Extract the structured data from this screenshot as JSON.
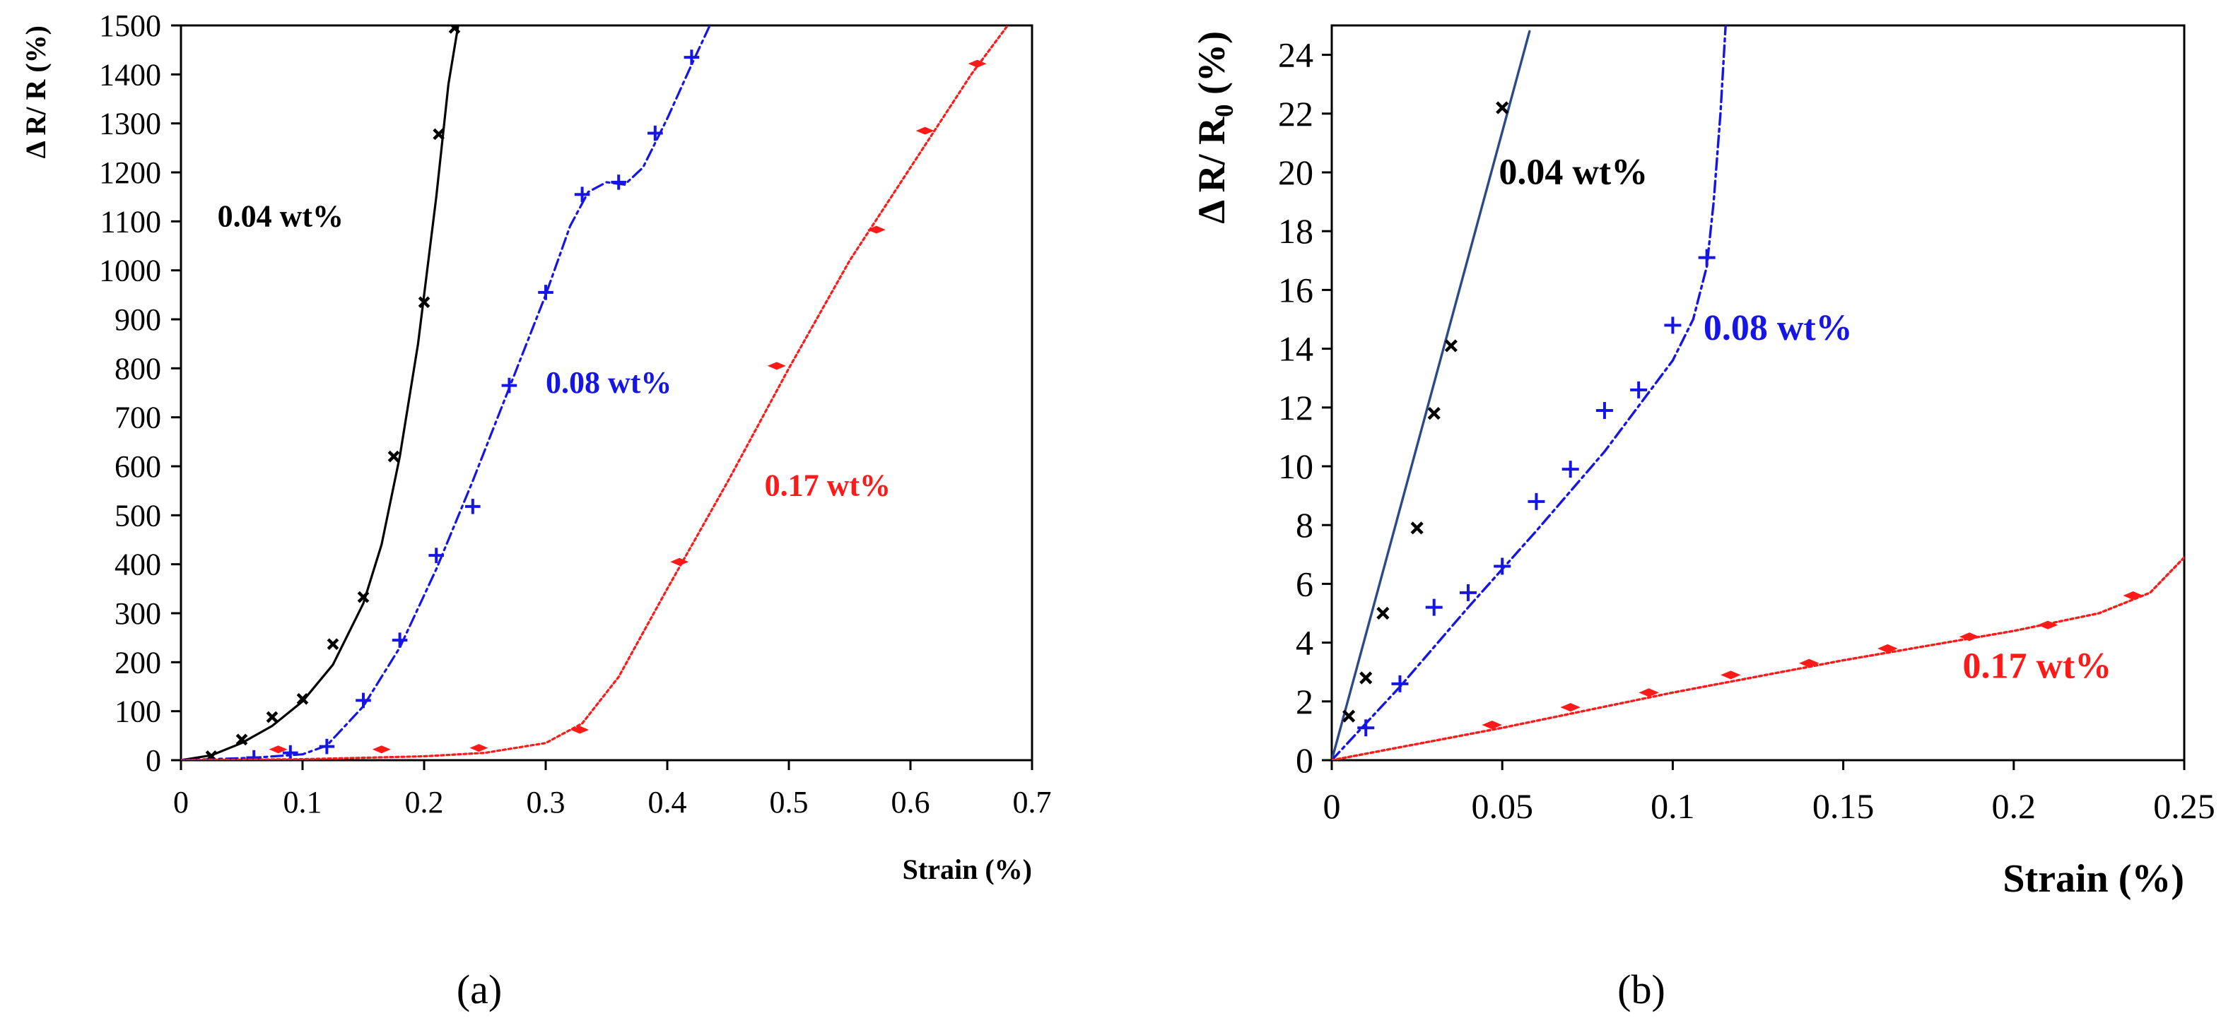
{
  "chart_data": [
    {
      "id": "a",
      "type": "scatter",
      "caption": "(a)",
      "xlabel": "Strain (%)",
      "ylabel": "Δ R/ R (%)",
      "xlim": [
        0,
        0.7
      ],
      "ylim": [
        0,
        1500
      ],
      "xticks": [
        "0",
        "0.1",
        "0.2",
        "0.3",
        "0.4",
        "0.5",
        "0.6",
        "0.7"
      ],
      "yticks": [
        "0",
        "100",
        "200",
        "300",
        "400",
        "500",
        "600",
        "700",
        "800",
        "900",
        "1000",
        "1100",
        "1200",
        "1300",
        "1400",
        "1500"
      ],
      "grid": false,
      "series": [
        {
          "name": "0.04 wt%",
          "color": "#000000",
          "marker": "x",
          "line_style": "solid",
          "label_pos": [
            0.03,
            1090
          ],
          "points": [
            [
              0.025,
              8
            ],
            [
              0.05,
              42
            ],
            [
              0.075,
              88
            ],
            [
              0.1,
              125
            ],
            [
              0.125,
              237
            ],
            [
              0.15,
              333
            ],
            [
              0.175,
              620
            ],
            [
              0.2,
              935
            ],
            [
              0.212,
              1278
            ],
            [
              0.225,
              1495
            ]
          ],
          "fit": [
            [
              0.0,
              0
            ],
            [
              0.025,
              10
            ],
            [
              0.05,
              35
            ],
            [
              0.075,
              70
            ],
            [
              0.1,
              120
            ],
            [
              0.125,
              195
            ],
            [
              0.15,
              320
            ],
            [
              0.165,
              440
            ],
            [
              0.18,
              620
            ],
            [
              0.195,
              850
            ],
            [
              0.21,
              1150
            ],
            [
              0.22,
              1380
            ],
            [
              0.228,
              1500
            ]
          ]
        },
        {
          "name": "0.08 wt%",
          "color": "#1515e6",
          "marker": "+",
          "line_style": "dashed",
          "label_pos": [
            0.3,
            750
          ],
          "points": [
            [
              0.06,
              5
            ],
            [
              0.09,
              15
            ],
            [
              0.12,
              28
            ],
            [
              0.15,
              122
            ],
            [
              0.18,
              245
            ],
            [
              0.21,
              418
            ],
            [
              0.24,
              518
            ],
            [
              0.27,
              765
            ],
            [
              0.3,
              955
            ],
            [
              0.33,
              1155
            ],
            [
              0.36,
              1180
            ],
            [
              0.39,
              1280
            ],
            [
              0.42,
              1435
            ]
          ],
          "fit": [
            [
              0.0,
              0
            ],
            [
              0.06,
              5
            ],
            [
              0.1,
              12
            ],
            [
              0.12,
              30
            ],
            [
              0.15,
              110
            ],
            [
              0.18,
              230
            ],
            [
              0.21,
              390
            ],
            [
              0.24,
              570
            ],
            [
              0.27,
              760
            ],
            [
              0.3,
              950
            ],
            [
              0.32,
              1090
            ],
            [
              0.335,
              1160
            ],
            [
              0.35,
              1180
            ],
            [
              0.365,
              1175
            ],
            [
              0.38,
              1210
            ],
            [
              0.4,
              1310
            ],
            [
              0.42,
              1420
            ],
            [
              0.435,
              1500
            ]
          ]
        },
        {
          "name": "0.17 wt%",
          "color": "#ff1a1a",
          "marker": "diamond",
          "line_style": "dotted",
          "label_pos": [
            0.48,
            540
          ],
          "points": [
            [
              0.08,
              22
            ],
            [
              0.165,
              22
            ],
            [
              0.245,
              25
            ],
            [
              0.328,
              62
            ],
            [
              0.41,
              405
            ],
            [
              0.49,
              805
            ],
            [
              0.572,
              1083
            ],
            [
              0.612,
              1285
            ],
            [
              0.655,
              1422
            ]
          ],
          "fit": [
            [
              0.0,
              0
            ],
            [
              0.1,
              2
            ],
            [
              0.2,
              8
            ],
            [
              0.25,
              15
            ],
            [
              0.3,
              35
            ],
            [
              0.33,
              75
            ],
            [
              0.36,
              170
            ],
            [
              0.4,
              350
            ],
            [
              0.45,
              570
            ],
            [
              0.5,
              800
            ],
            [
              0.55,
              1020
            ],
            [
              0.6,
              1210
            ],
            [
              0.65,
              1400
            ],
            [
              0.68,
              1500
            ]
          ]
        }
      ]
    },
    {
      "id": "b",
      "type": "scatter",
      "caption": "(b)",
      "xlabel": "Strain (%)",
      "ylabel": "Δ R/ R",
      "ylabel_sub": "0",
      "ylabel_tail": " (%)",
      "xlim": [
        0,
        0.25
      ],
      "ylim": [
        0,
        25
      ],
      "xticks": [
        "0",
        "0.05",
        "0.1",
        "0.15",
        "0.2",
        "0.25"
      ],
      "yticks": [
        "0",
        "2",
        "4",
        "6",
        "8",
        "10",
        "12",
        "14",
        "16",
        "18",
        "20",
        "22",
        "24"
      ],
      "grid": false,
      "series": [
        {
          "name": "0.04 wt%",
          "color": "#000000",
          "marker": "x",
          "line_style": "solid",
          "line_color": "#2b4a8a",
          "label_pos": [
            0.049,
            19.6
          ],
          "points": [
            [
              0.005,
              1.5
            ],
            [
              0.01,
              2.8
            ],
            [
              0.015,
              5.0
            ],
            [
              0.025,
              7.9
            ],
            [
              0.03,
              11.8
            ],
            [
              0.035,
              14.1
            ],
            [
              0.05,
              22.2
            ]
          ],
          "fit": [
            [
              0.0,
              0
            ],
            [
              0.058,
              24.8
            ]
          ]
        },
        {
          "name": "0.08 wt%",
          "color": "#1515e6",
          "marker": "+",
          "line_style": "dashed",
          "label_pos": [
            0.109,
            14.3
          ],
          "points": [
            [
              0.01,
              1.1
            ],
            [
              0.02,
              2.6
            ],
            [
              0.03,
              5.2
            ],
            [
              0.04,
              5.7
            ],
            [
              0.05,
              6.6
            ],
            [
              0.06,
              8.8
            ],
            [
              0.07,
              9.9
            ],
            [
              0.08,
              11.9
            ],
            [
              0.09,
              12.6
            ],
            [
              0.1,
              14.8
            ],
            [
              0.11,
              17.1
            ]
          ],
          "fit": [
            [
              0.0,
              0
            ],
            [
              0.02,
              2.5
            ],
            [
              0.04,
              5.2
            ],
            [
              0.06,
              7.8
            ],
            [
              0.08,
              10.5
            ],
            [
              0.1,
              13.6
            ],
            [
              0.106,
              15.0
            ],
            [
              0.11,
              16.8
            ],
            [
              0.112,
              19.0
            ],
            [
              0.114,
              22.0
            ],
            [
              0.1155,
              25.0
            ]
          ]
        },
        {
          "name": "0.17 wt%",
          "color": "#ff1a1a",
          "marker": "diamond",
          "line_style": "dotted",
          "label_pos": [
            0.185,
            2.8
          ],
          "points": [
            [
              0.047,
              1.2
            ],
            [
              0.07,
              1.8
            ],
            [
              0.093,
              2.3
            ],
            [
              0.117,
              2.9
            ],
            [
              0.14,
              3.3
            ],
            [
              0.163,
              3.8
            ],
            [
              0.187,
              4.2
            ],
            [
              0.21,
              4.6
            ],
            [
              0.235,
              5.6
            ]
          ],
          "fit": [
            [
              0.0,
              0
            ],
            [
              0.05,
              1.1
            ],
            [
              0.1,
              2.3
            ],
            [
              0.15,
              3.4
            ],
            [
              0.2,
              4.4
            ],
            [
              0.225,
              5.0
            ],
            [
              0.24,
              5.7
            ],
            [
              0.25,
              6.9
            ]
          ]
        }
      ]
    }
  ]
}
